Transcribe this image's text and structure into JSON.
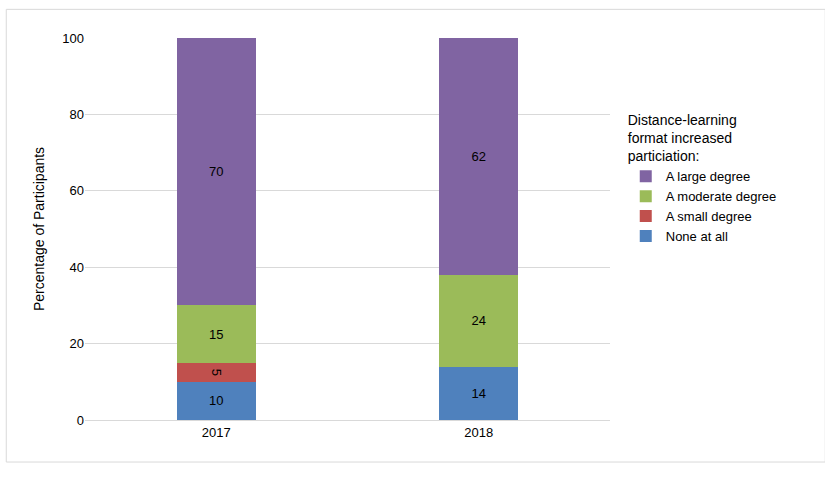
{
  "chart_data": {
    "type": "bar",
    "stacked": true,
    "categories": [
      "2017",
      "2018"
    ],
    "series": [
      {
        "name": "None at all",
        "color": "#4f81bd",
        "values": [
          10,
          14
        ]
      },
      {
        "name": "A small degree",
        "color": "#c0504d",
        "values": [
          5,
          null
        ]
      },
      {
        "name": "A moderate degree",
        "color": "#9bbb59",
        "values": [
          15,
          24
        ]
      },
      {
        "name": "A large degree",
        "color": "#8064a2",
        "values": [
          70,
          62
        ]
      }
    ],
    "y_label": "Percentage of Participants",
    "legend_title": "Distance-learning\nformat increased\nparticiation:",
    "legend": "right",
    "ylim": [
      0,
      100
    ],
    "yticks": [
      0,
      20,
      40,
      60,
      80,
      100
    ],
    "grid": true,
    "data_labels": true
  }
}
